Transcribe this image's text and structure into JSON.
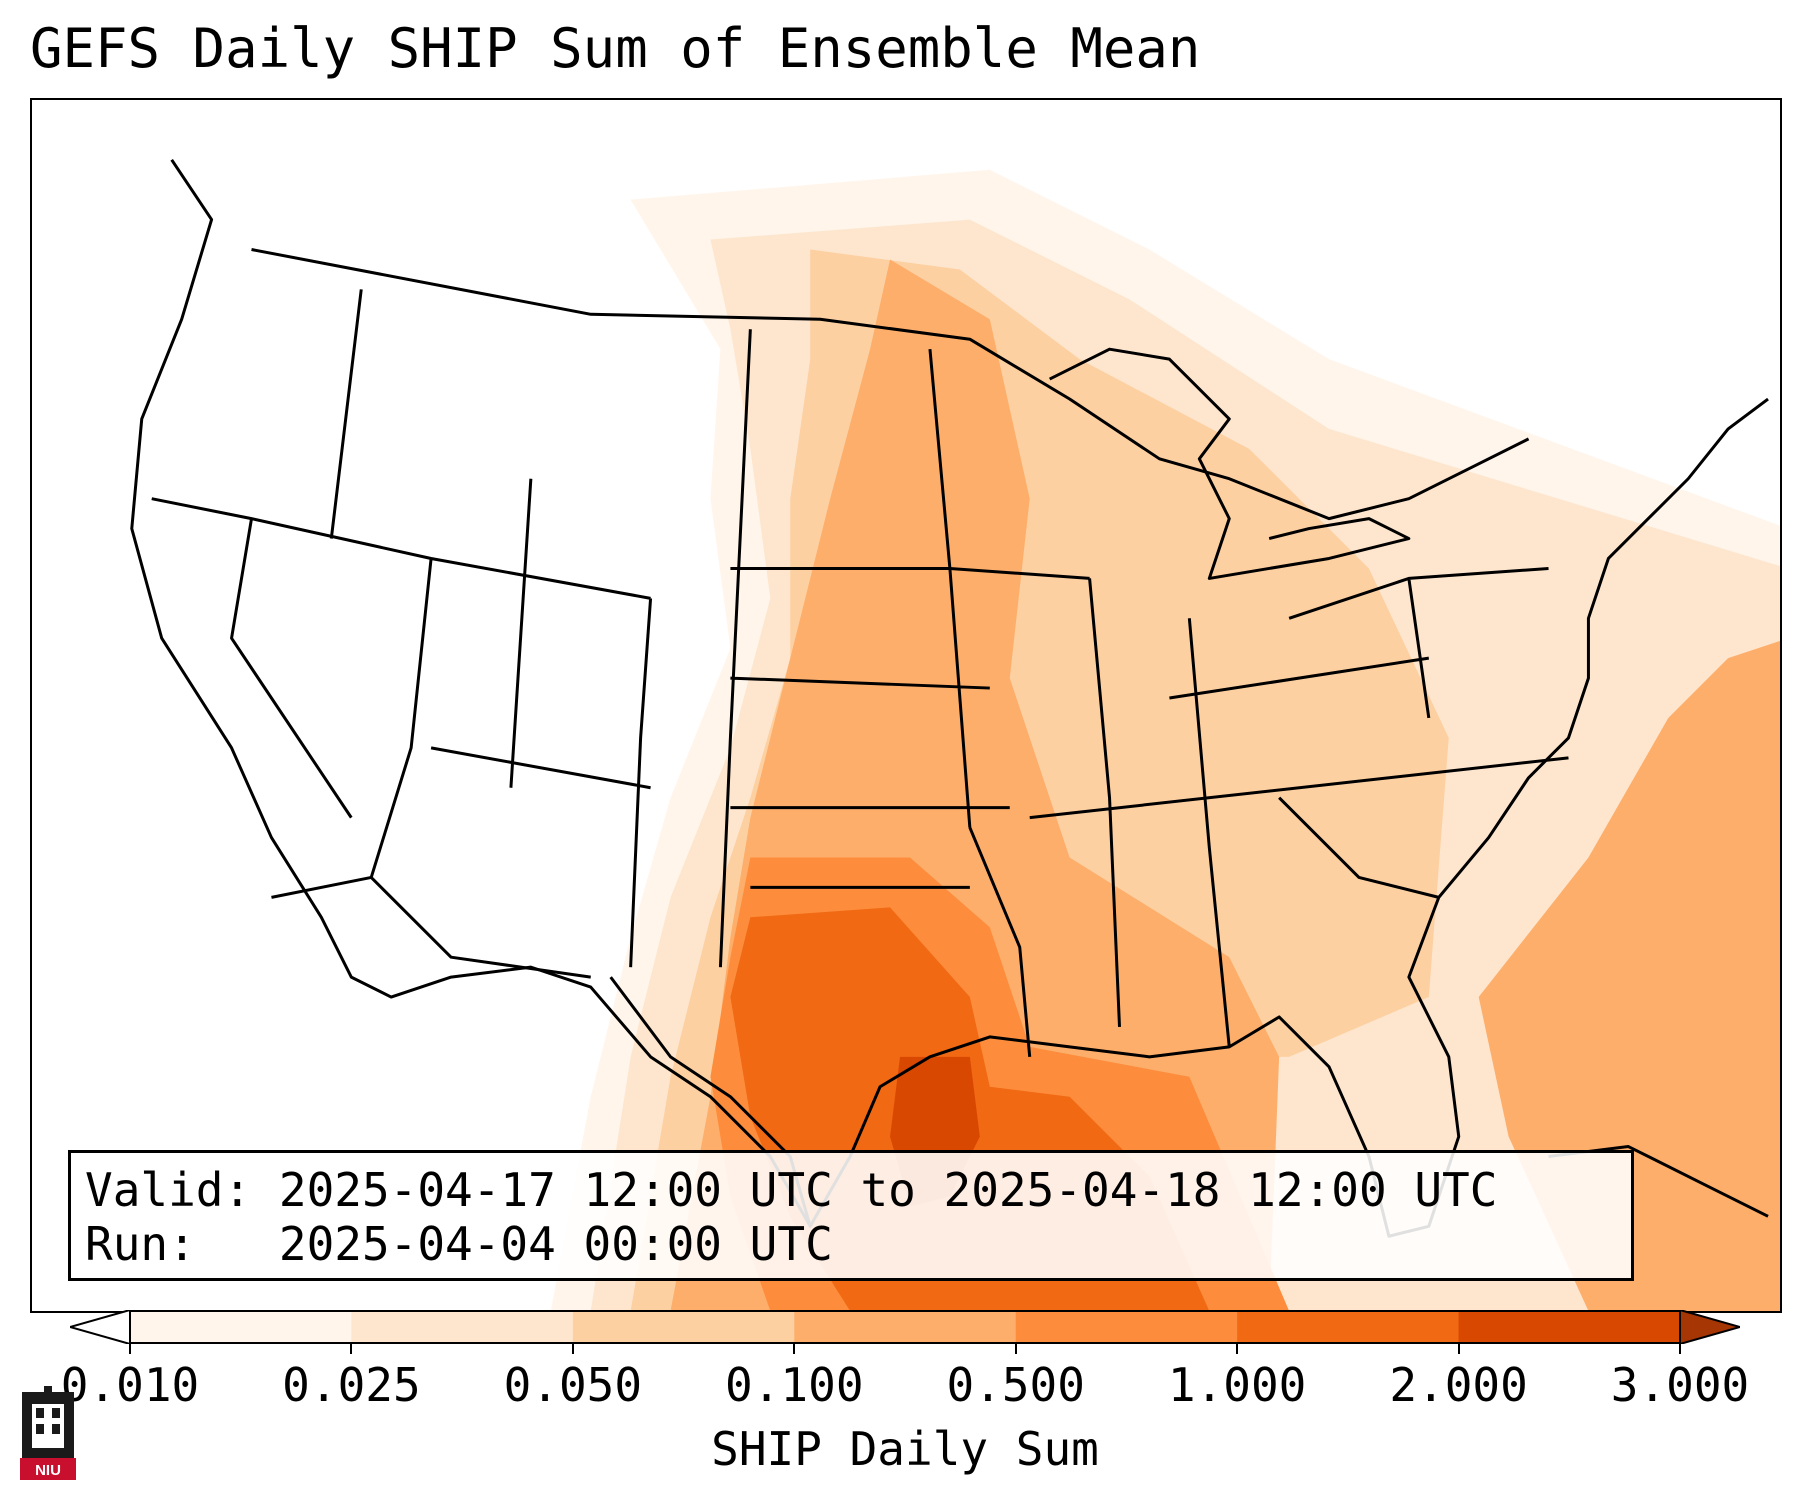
{
  "title": "GEFS Daily SHIP Sum of Ensemble Mean",
  "info": {
    "valid_label": "Valid:",
    "valid_value": "2025-04-17 12:00 UTC to 2025-04-18 12:00 UTC",
    "run_label": "Run:",
    "run_value": "2025-04-04 00:00 UTC"
  },
  "colorbar": {
    "label": "SHIP Daily Sum",
    "ticks": [
      "0.010",
      "0.025",
      "0.050",
      "0.100",
      "0.500",
      "1.000",
      "2.000",
      "3.000"
    ],
    "colors": [
      "#fff5eb",
      "#fee6ce",
      "#fdd0a2",
      "#fdae6b",
      "#fd8d3c",
      "#f16913",
      "#d94801"
    ],
    "under_color": "#ffffff",
    "over_color": "#a63603"
  },
  "logo": {
    "text": "NIU",
    "name": "niu-logo"
  }
}
